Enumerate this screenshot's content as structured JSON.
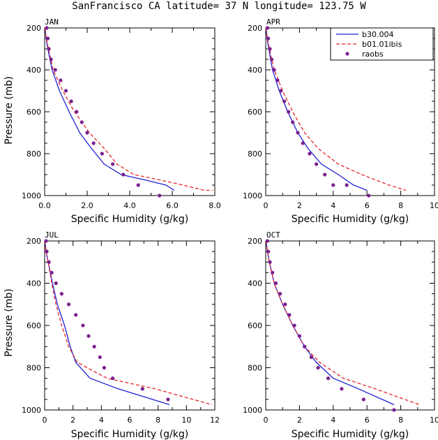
{
  "figure": {
    "title": "SanFrancisco CA  latitude= 37 N longitude= 123.75 W"
  },
  "legend": {
    "entries": [
      {
        "label": "b30.004",
        "style": "solid",
        "color": "#1f1fd6"
      },
      {
        "label": "b01.01ibis",
        "style": "dashed",
        "color": "#e3262a"
      },
      {
        "label": "raobs",
        "style": "dots",
        "color": "#7b1f8f"
      }
    ]
  },
  "chart_data": [
    {
      "type": "line",
      "panel": "JAN",
      "xlabel": "Specific Humidity (g/kg)",
      "ylabel": "Pressure (mb)",
      "xlim": [
        0,
        8
      ],
      "ylim": [
        1000,
        200
      ],
      "y_inverted": true,
      "x_ticks": [
        "0.0",
        "2.0",
        "4.0",
        "6.0",
        "8.0"
      ],
      "x_tick_values": [
        0,
        2,
        4,
        6,
        8
      ],
      "y_ticks": [
        200,
        400,
        600,
        800,
        1000
      ],
      "series": [
        {
          "name": "b30.004",
          "kind": "line",
          "color": "#1f1fd6",
          "x": [
            0.02,
            0.07,
            0.15,
            0.35,
            0.7,
            1.15,
            1.65,
            2.2,
            2.8,
            3.6,
            4.7,
            5.7,
            6.1
          ],
          "y": [
            200,
            250,
            300,
            400,
            500,
            600,
            700,
            775,
            850,
            900,
            925,
            950,
            975
          ]
        },
        {
          "name": "b01.01ibis",
          "kind": "dashed",
          "color": "#e3262a",
          "x": [
            0.02,
            0.08,
            0.18,
            0.4,
            0.85,
            1.4,
            2.1,
            2.8,
            3.4,
            4.2,
            5.4,
            6.5,
            7.5,
            7.9
          ],
          "y": [
            200,
            250,
            300,
            400,
            500,
            600,
            700,
            775,
            850,
            900,
            925,
            950,
            975,
            975
          ]
        },
        {
          "name": "raobs",
          "kind": "dots",
          "color": "#7b1f8f",
          "x": [
            0.1,
            0.15,
            0.2,
            0.3,
            0.5,
            0.75,
            1.0,
            1.25,
            1.5,
            1.75,
            2.0,
            2.3,
            2.7,
            3.2,
            3.7,
            4.4,
            5.4
          ],
          "y": [
            200,
            250,
            300,
            350,
            400,
            450,
            500,
            550,
            600,
            650,
            700,
            750,
            800,
            850,
            900,
            950,
            1000
          ]
        }
      ]
    },
    {
      "type": "line",
      "panel": "APR",
      "xlabel": "Specific Humidity (g/kg)",
      "ylabel": "",
      "xlim": [
        0,
        10
      ],
      "ylim": [
        1000,
        200
      ],
      "y_inverted": true,
      "x_ticks": [
        "0",
        "2",
        "4",
        "6",
        "8",
        "10"
      ],
      "x_tick_values": [
        0,
        2,
        4,
        6,
        8,
        10
      ],
      "y_ticks": [
        200,
        400,
        600,
        800,
        1000
      ],
      "series": [
        {
          "name": "b30.004",
          "kind": "line",
          "color": "#1f1fd6",
          "x": [
            0.02,
            0.08,
            0.18,
            0.4,
            0.8,
            1.3,
            1.9,
            2.5,
            3.3,
            4.3,
            5.2,
            6.0
          ],
          "y": [
            200,
            250,
            300,
            400,
            500,
            600,
            700,
            775,
            850,
            900,
            950,
            975
          ]
        },
        {
          "name": "b01.01ibis",
          "kind": "dashed",
          "color": "#e3262a",
          "x": [
            0.02,
            0.1,
            0.22,
            0.5,
            1.0,
            1.6,
            2.3,
            3.1,
            4.3,
            5.7,
            7.3,
            8.3
          ],
          "y": [
            200,
            250,
            300,
            400,
            500,
            600,
            700,
            775,
            850,
            900,
            950,
            975
          ]
        },
        {
          "name": "raobs",
          "kind": "dots",
          "color": "#7b1f8f",
          "x": [
            0.1,
            0.15,
            0.25,
            0.35,
            0.5,
            0.7,
            0.9,
            1.1,
            1.35,
            1.6,
            1.9,
            2.2,
            2.6,
            3.0,
            3.5,
            4.0,
            4.8,
            6.1
          ],
          "y": [
            200,
            250,
            300,
            350,
            400,
            450,
            500,
            550,
            600,
            650,
            700,
            750,
            800,
            850,
            900,
            950,
            950,
            1000
          ]
        }
      ]
    },
    {
      "type": "line",
      "panel": "JUL",
      "xlabel": "Specific Humidity (g/kg)",
      "ylabel": "Pressure (mb)",
      "xlim": [
        0,
        12
      ],
      "ylim": [
        1000,
        200
      ],
      "y_inverted": true,
      "x_ticks": [
        "0",
        "2",
        "4",
        "6",
        "8",
        "10",
        "12"
      ],
      "x_tick_values": [
        0,
        2,
        4,
        6,
        8,
        10,
        12
      ],
      "y_ticks": [
        200,
        400,
        600,
        800,
        1000
      ],
      "series": [
        {
          "name": "b30.004",
          "kind": "line",
          "color": "#1f1fd6",
          "x": [
            0.02,
            0.1,
            0.25,
            0.55,
            0.9,
            1.4,
            1.8,
            2.2,
            3.2,
            5.2,
            8.8
          ],
          "y": [
            200,
            250,
            300,
            400,
            500,
            600,
            700,
            775,
            850,
            900,
            975
          ]
        },
        {
          "name": "b01.01ibis",
          "kind": "dashed",
          "color": "#e3262a",
          "x": [
            0.02,
            0.1,
            0.25,
            0.5,
            0.8,
            1.2,
            1.7,
            2.3,
            3.0,
            4.4,
            7.8,
            11.8
          ],
          "y": [
            200,
            250,
            300,
            400,
            500,
            600,
            700,
            775,
            800,
            850,
            900,
            975
          ]
        },
        {
          "name": "raobs",
          "kind": "dots",
          "color": "#7b1f8f",
          "x": [
            0.1,
            0.15,
            0.3,
            0.5,
            0.8,
            1.2,
            1.7,
            2.2,
            2.7,
            3.1,
            3.5,
            3.9,
            4.2,
            4.8,
            6.9,
            8.7
          ],
          "y": [
            200,
            250,
            300,
            350,
            400,
            450,
            500,
            550,
            600,
            650,
            700,
            750,
            800,
            850,
            900,
            950
          ]
        }
      ]
    },
    {
      "type": "line",
      "panel": "OCT",
      "xlabel": "Specific Humidity (g/kg)",
      "ylabel": "",
      "xlim": [
        0,
        10
      ],
      "ylim": [
        1000,
        200
      ],
      "y_inverted": true,
      "x_ticks": [
        "0",
        "2",
        "4",
        "6",
        "8",
        "10"
      ],
      "x_tick_values": [
        0,
        2,
        4,
        6,
        8,
        10
      ],
      "y_ticks": [
        200,
        400,
        600,
        800,
        1000
      ],
      "series": [
        {
          "name": "b30.004",
          "kind": "line",
          "color": "#1f1fd6",
          "x": [
            0.02,
            0.1,
            0.22,
            0.5,
            1.0,
            1.6,
            2.3,
            3.0,
            4.0,
            5.5,
            7.6
          ],
          "y": [
            200,
            250,
            300,
            400,
            500,
            600,
            700,
            775,
            850,
            900,
            975
          ]
        },
        {
          "name": "b01.01ibis",
          "kind": "dashed",
          "color": "#e3262a",
          "x": [
            0.02,
            0.1,
            0.22,
            0.5,
            1.0,
            1.6,
            2.3,
            3.2,
            4.6,
            6.5,
            9.1
          ],
          "y": [
            200,
            250,
            300,
            400,
            500,
            600,
            700,
            775,
            850,
            900,
            975
          ]
        },
        {
          "name": "raobs",
          "kind": "dots",
          "color": "#7b1f8f",
          "x": [
            0.1,
            0.15,
            0.25,
            0.4,
            0.6,
            0.85,
            1.15,
            1.4,
            1.7,
            2.0,
            2.3,
            2.7,
            3.1,
            3.7,
            4.5,
            5.8,
            7.6
          ],
          "y": [
            200,
            250,
            300,
            350,
            400,
            450,
            500,
            550,
            600,
            650,
            700,
            750,
            800,
            850,
            900,
            950,
            1000
          ]
        }
      ]
    }
  ]
}
